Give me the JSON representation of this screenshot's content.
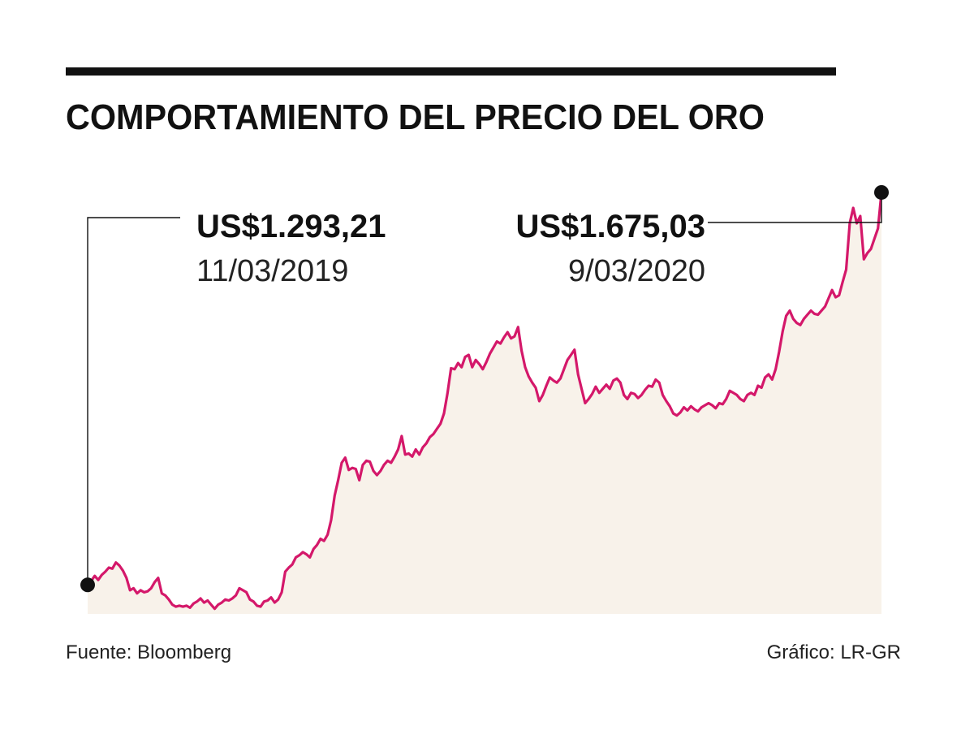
{
  "header": {
    "title": "COMPORTAMIENTO DEL PRECIO DEL ORO"
  },
  "annotations": {
    "start": {
      "value": "US$1.293,21",
      "date": "11/03/2019"
    },
    "end": {
      "value": "US$1.675,03",
      "date": "9/03/2020"
    }
  },
  "footer": {
    "source": "Fuente: Bloomberg",
    "credit": "Gráfico: LR-GR"
  },
  "colors": {
    "line": "#d4186a",
    "area": "#f8f2ea",
    "text": "#111111"
  },
  "chart_data": {
    "type": "area",
    "title": "COMPORTAMIENTO DEL PRECIO DEL ORO",
    "xlabel": "",
    "ylabel": "",
    "grid": false,
    "legend": "none",
    "x_range": [
      "2019-03-11",
      "2020-03-09"
    ],
    "ylim": [
      1265,
      1690
    ],
    "series": [
      {
        "values": [
          1293.21,
          1297,
          1302,
          1298,
          1303,
          1306,
          1310,
          1309,
          1315,
          1312,
          1307,
          1300,
          1288,
          1290,
          1285,
          1288,
          1286,
          1287,
          1290,
          1296,
          1300,
          1285,
          1283,
          1279,
          1274,
          1272,
          1273,
          1272,
          1273,
          1271,
          1275,
          1277,
          1280,
          1276,
          1278,
          1274,
          1270,
          1274,
          1276,
          1279,
          1278,
          1280,
          1283,
          1290,
          1288,
          1286,
          1279,
          1277,
          1273,
          1272,
          1277,
          1278,
          1281,
          1276,
          1279,
          1286,
          1306,
          1310,
          1313,
          1320,
          1322,
          1325,
          1323,
          1320,
          1328,
          1332,
          1338,
          1336,
          1342,
          1356,
          1380,
          1395,
          1412,
          1417,
          1405,
          1407,
          1406,
          1395,
          1410,
          1414,
          1413,
          1404,
          1400,
          1404,
          1410,
          1414,
          1412,
          1418,
          1425,
          1438,
          1420,
          1421,
          1418,
          1425,
          1420,
          1427,
          1431,
          1437,
          1440,
          1445,
          1450,
          1460,
          1480,
          1504,
          1503,
          1509,
          1505,
          1515,
          1517,
          1505,
          1512,
          1508,
          1503,
          1510,
          1518,
          1524,
          1530,
          1528,
          1534,
          1539,
          1533,
          1535,
          1544,
          1521,
          1505,
          1496,
          1490,
          1485,
          1472,
          1478,
          1487,
          1495,
          1492,
          1490,
          1494,
          1503,
          1512,
          1517,
          1522,
          1498,
          1484,
          1470,
          1474,
          1479,
          1486,
          1480,
          1484,
          1488,
          1484,
          1492,
          1494,
          1490,
          1478,
          1474,
          1480,
          1479,
          1475,
          1478,
          1483,
          1487,
          1486,
          1493,
          1490,
          1478,
          1472,
          1467,
          1460,
          1458,
          1461,
          1466,
          1463,
          1467,
          1464,
          1462,
          1466,
          1468,
          1470,
          1468,
          1465,
          1470,
          1469,
          1474,
          1482,
          1480,
          1478,
          1474,
          1472,
          1478,
          1480,
          1478,
          1487,
          1485,
          1495,
          1498,
          1493,
          1503,
          1520,
          1540,
          1555,
          1560,
          1552,
          1548,
          1546,
          1552,
          1556,
          1560,
          1557,
          1556,
          1560,
          1564,
          1572,
          1580,
          1573,
          1575,
          1588,
          1600,
          1645,
          1660,
          1645,
          1652,
          1610,
          1616,
          1620,
          1630,
          1640,
          1675.03
        ]
      }
    ]
  }
}
